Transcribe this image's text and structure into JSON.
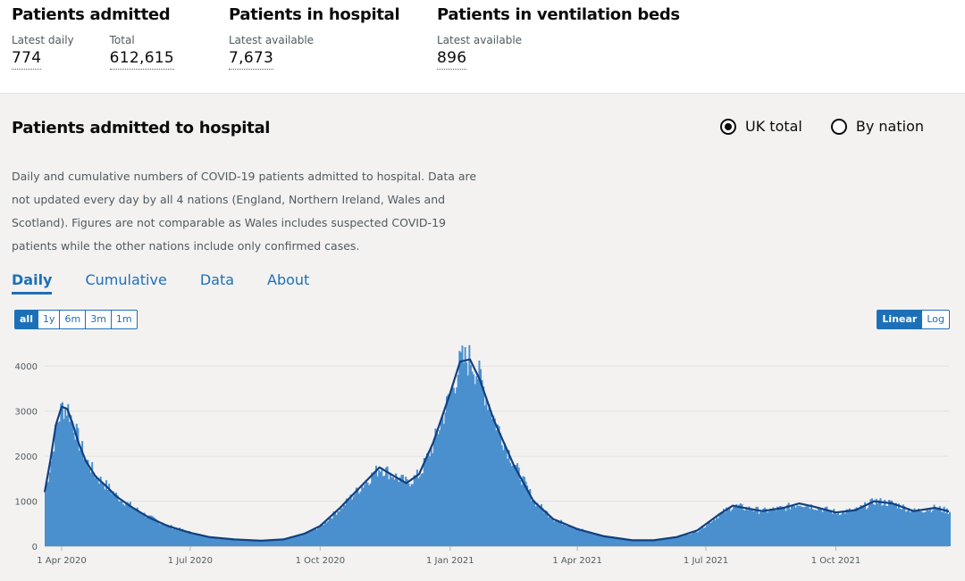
{
  "headline": {
    "admitted": {
      "title": "Patients admitted",
      "daily_label": "Latest daily",
      "daily_value": "774",
      "total_label": "Total",
      "total_value": "612,615"
    },
    "in_hospital": {
      "title": "Patients in hospital",
      "label": "Latest available",
      "value": "7,673"
    },
    "ventilation": {
      "title": "Patients in ventilation beds",
      "label": "Latest available",
      "value": "896"
    }
  },
  "card": {
    "title": "Patients admitted to hospital",
    "radio_uk": "UK total",
    "radio_nation": "By nation",
    "radio_selected": "UK total",
    "description": "Daily and cumulative numbers of COVID-19 patients admitted to hospital. Data are not updated every day by all 4 nations (England, Northern Ireland, Wales and Scotland). Figures are not comparable as Wales includes suspected COVID-19 patients while the other nations include only confirmed cases.",
    "tabs": [
      "Daily",
      "Cumulative",
      "Data",
      "About"
    ],
    "active_tab": "Daily",
    "ranges": [
      "all",
      "1y",
      "6m",
      "3m",
      "1m"
    ],
    "active_range": "all",
    "scales": [
      "Linear",
      "Log"
    ],
    "active_scale": "Linear"
  },
  "colors": {
    "bar": "#4a90cf",
    "line": "#12407f",
    "link": "#1d70b8"
  },
  "chart_data": {
    "type": "area",
    "series": [
      {
        "kind": "bar"
      },
      {
        "kind": "line"
      }
    ],
    "ylim": [
      0,
      4500
    ],
    "yticks": [
      0,
      1000,
      2000,
      3000,
      4000
    ],
    "xtick_labels": [
      "1 Apr 2020",
      "1 Jul 2020",
      "1 Oct 2020",
      "1 Jan 2021",
      "1 Apr 2021",
      "1 Jul 2021",
      "1 Oct 2021"
    ],
    "xtick_dates": [
      "2020-04-01",
      "2020-07-01",
      "2020-10-01",
      "2021-01-01",
      "2021-04-01",
      "2021-07-01",
      "2021-10-01"
    ],
    "xlim": [
      "2020-03-20",
      "2021-12-20"
    ],
    "grid": true,
    "points": [
      [
        "2020-03-20",
        1200
      ],
      [
        "2020-03-24",
        1900
      ],
      [
        "2020-03-28",
        2700
      ],
      [
        "2020-04-01",
        3100
      ],
      [
        "2020-04-05",
        3050
      ],
      [
        "2020-04-09",
        2700
      ],
      [
        "2020-04-13",
        2300
      ],
      [
        "2020-04-18",
        1900
      ],
      [
        "2020-04-25",
        1550
      ],
      [
        "2020-05-02",
        1350
      ],
      [
        "2020-05-10",
        1100
      ],
      [
        "2020-05-20",
        880
      ],
      [
        "2020-06-01",
        650
      ],
      [
        "2020-06-15",
        450
      ],
      [
        "2020-07-01",
        300
      ],
      [
        "2020-07-15",
        200
      ],
      [
        "2020-08-01",
        150
      ],
      [
        "2020-08-20",
        120
      ],
      [
        "2020-09-05",
        150
      ],
      [
        "2020-09-20",
        280
      ],
      [
        "2020-10-01",
        450
      ],
      [
        "2020-10-15",
        850
      ],
      [
        "2020-11-01",
        1400
      ],
      [
        "2020-11-12",
        1750
      ],
      [
        "2020-11-20",
        1600
      ],
      [
        "2020-12-01",
        1400
      ],
      [
        "2020-12-10",
        1600
      ],
      [
        "2020-12-20",
        2300
      ],
      [
        "2021-01-01",
        3400
      ],
      [
        "2021-01-08",
        4100
      ],
      [
        "2021-01-15",
        4150
      ],
      [
        "2021-01-22",
        3700
      ],
      [
        "2021-02-01",
        2800
      ],
      [
        "2021-02-15",
        1800
      ],
      [
        "2021-03-01",
        1000
      ],
      [
        "2021-03-15",
        600
      ],
      [
        "2021-04-01",
        380
      ],
      [
        "2021-04-20",
        220
      ],
      [
        "2021-05-10",
        130
      ],
      [
        "2021-05-25",
        130
      ],
      [
        "2021-06-10",
        200
      ],
      [
        "2021-06-25",
        350
      ],
      [
        "2021-07-10",
        700
      ],
      [
        "2021-07-20",
        900
      ],
      [
        "2021-07-28",
        850
      ],
      [
        "2021-08-10",
        780
      ],
      [
        "2021-08-25",
        850
      ],
      [
        "2021-09-05",
        950
      ],
      [
        "2021-09-15",
        880
      ],
      [
        "2021-10-01",
        750
      ],
      [
        "2021-10-15",
        800
      ],
      [
        "2021-10-28",
        1000
      ],
      [
        "2021-11-10",
        950
      ],
      [
        "2021-11-25",
        780
      ],
      [
        "2021-12-10",
        850
      ],
      [
        "2021-12-20",
        774
      ]
    ]
  }
}
